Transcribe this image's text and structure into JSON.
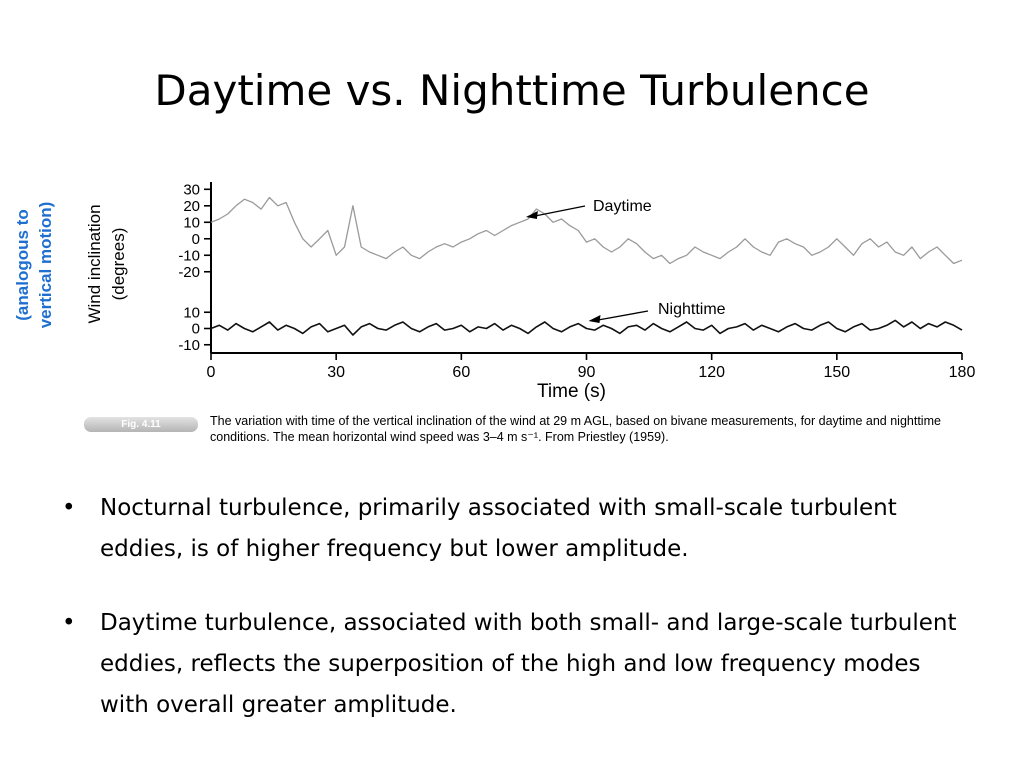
{
  "slide": {
    "title": "Daytime vs. Nighttime Turbulence",
    "side_note": [
      "(analogous to",
      "vertical motion)"
    ],
    "figure_tag": "Fig. 4.11",
    "caption": "The variation with time of the vertical inclination of the wind at 29 m AGL, based on bivane measurements, for daytime and nighttime conditions. The mean horizontal wind speed was 3–4 m s⁻¹. From Priestley (1959).",
    "bullets": [
      "Nocturnal turbulence, primarily associated with small-scale turbulent eddies, is of higher frequency but lower amplitude.",
      "Daytime turbulence, associated with both small- and large-scale turbulent eddies, reflects the superposition of the high and low frequency modes with overall greater amplitude."
    ],
    "bullet_glyph": "•"
  },
  "chart_data": {
    "type": "line",
    "xlabel": "Time (s)",
    "ylabel": [
      "Wind inclination",
      "(degrees)"
    ],
    "xlim": [
      0,
      180
    ],
    "xticks": [
      0,
      30,
      60,
      90,
      120,
      150,
      180
    ],
    "grid": false,
    "series": [
      {
        "name": "Daytime",
        "color": "#9a9a9a",
        "yticks": [
          30,
          20,
          10,
          0,
          -10,
          -20
        ],
        "ylim": [
          -25,
          32
        ],
        "x": [
          0,
          2,
          4,
          6,
          8,
          10,
          12,
          14,
          16,
          18,
          20,
          22,
          24,
          26,
          28,
          30,
          32,
          34,
          36,
          38,
          40,
          42,
          44,
          46,
          48,
          50,
          52,
          54,
          56,
          58,
          60,
          62,
          64,
          66,
          68,
          70,
          72,
          74,
          76,
          78,
          80,
          82,
          84,
          86,
          88,
          90,
          92,
          94,
          96,
          98,
          100,
          102,
          104,
          106,
          108,
          110,
          112,
          114,
          116,
          118,
          120,
          122,
          124,
          126,
          128,
          130,
          132,
          134,
          136,
          138,
          140,
          142,
          144,
          146,
          148,
          150,
          152,
          154,
          156,
          158,
          160,
          162,
          164,
          166,
          168,
          170,
          172,
          174,
          176,
          178,
          180
        ],
        "values": [
          10,
          12,
          15,
          20,
          24,
          22,
          18,
          25,
          20,
          22,
          10,
          0,
          -5,
          0,
          5,
          -10,
          -5,
          20,
          -5,
          -8,
          -10,
          -12,
          -8,
          -5,
          -10,
          -12,
          -8,
          -5,
          -3,
          -5,
          -2,
          0,
          3,
          5,
          2,
          5,
          8,
          10,
          12,
          18,
          15,
          10,
          12,
          8,
          5,
          -2,
          0,
          -5,
          -8,
          -5,
          0,
          -3,
          -8,
          -12,
          -10,
          -15,
          -12,
          -10,
          -5,
          -8,
          -10,
          -12,
          -8,
          -5,
          0,
          -5,
          -8,
          -10,
          -2,
          0,
          -3,
          -5,
          -10,
          -8,
          -5,
          0,
          -5,
          -10,
          -3,
          0,
          -5,
          -2,
          -8,
          -10,
          -5,
          -12,
          -8,
          -5,
          -10,
          -15,
          -13
        ]
      },
      {
        "name": "Nighttime",
        "color": "#111111",
        "yticks": [
          10,
          0,
          -10
        ],
        "ylim": [
          -12,
          12
        ],
        "x": [
          0,
          2,
          4,
          6,
          8,
          10,
          12,
          14,
          16,
          18,
          20,
          22,
          24,
          26,
          28,
          30,
          32,
          34,
          36,
          38,
          40,
          42,
          44,
          46,
          48,
          50,
          52,
          54,
          56,
          58,
          60,
          62,
          64,
          66,
          68,
          70,
          72,
          74,
          76,
          78,
          80,
          82,
          84,
          86,
          88,
          90,
          92,
          94,
          96,
          98,
          100,
          102,
          104,
          106,
          108,
          110,
          112,
          114,
          116,
          118,
          120,
          122,
          124,
          126,
          128,
          130,
          132,
          134,
          136,
          138,
          140,
          142,
          144,
          146,
          148,
          150,
          152,
          154,
          156,
          158,
          160,
          162,
          164,
          166,
          168,
          170,
          172,
          174,
          176,
          178,
          180
        ],
        "values": [
          0,
          2,
          -1,
          3,
          0,
          -2,
          1,
          4,
          -1,
          2,
          0,
          -3,
          1,
          3,
          -2,
          0,
          2,
          -4,
          1,
          3,
          0,
          -1,
          2,
          4,
          0,
          -2,
          1,
          3,
          -1,
          0,
          2,
          -2,
          1,
          0,
          3,
          -1,
          2,
          0,
          -3,
          1,
          4,
          0,
          -2,
          1,
          3,
          0,
          -1,
          2,
          0,
          -3,
          1,
          2,
          -1,
          3,
          0,
          -2,
          1,
          4,
          0,
          -1,
          2,
          -3,
          0,
          1,
          3,
          -1,
          2,
          0,
          -2,
          1,
          3,
          0,
          -1,
          2,
          4,
          0,
          -2,
          1,
          3,
          -1,
          0,
          2,
          5,
          1,
          4,
          0,
          3,
          1,
          4,
          2,
          -1
        ]
      }
    ],
    "annotations": [
      "Daytime",
      "Nighttime"
    ]
  }
}
